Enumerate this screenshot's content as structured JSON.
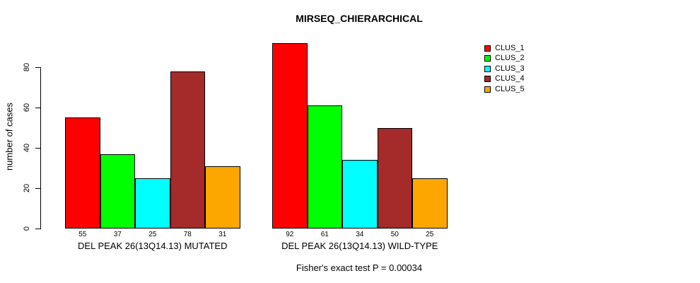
{
  "chart_data": {
    "type": "bar",
    "title": "MIRSEQ_CHIERARCHICAL",
    "ylabel": "number of cases",
    "xlabel": "",
    "categories": [
      "DEL PEAK 26(13Q14.13) MUTATED",
      "DEL PEAK 26(13Q14.13) WILD-TYPE"
    ],
    "series": [
      {
        "name": "CLUS_1",
        "color": "#FF0000",
        "values": [
          55,
          92
        ]
      },
      {
        "name": "CLUS_2",
        "color": "#00FF00",
        "values": [
          37,
          61
        ]
      },
      {
        "name": "CLUS_3",
        "color": "#00FFFF",
        "values": [
          25,
          34
        ]
      },
      {
        "name": "CLUS_4",
        "color": "#A52A2A",
        "values": [
          78,
          50
        ]
      },
      {
        "name": "CLUS_5",
        "color": "#FFA500",
        "values": [
          31,
          25
        ]
      }
    ],
    "y_ticks": [
      0,
      20,
      40,
      60,
      80
    ],
    "ylim": [
      0,
      95
    ],
    "grid": false,
    "legend_position": "right",
    "bar_value_labels_shown": true,
    "annotation": "Fisher's exact test P = 0.00034"
  }
}
